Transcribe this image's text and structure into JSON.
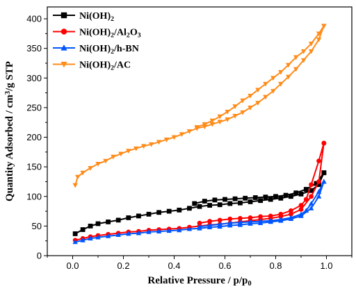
{
  "chart_data": {
    "type": "line",
    "xlabel_parts": [
      "Relative Pressure / p/p",
      "0"
    ],
    "ylabel_parts": [
      "Quantity Adsorbed / cm",
      "3",
      "/g STP"
    ],
    "xlim": [
      -0.1,
      1.1
    ],
    "ylim": [
      0,
      420
    ],
    "xticks": [
      "0.0",
      "0.2",
      "0.4",
      "0.6",
      "0.8",
      "1.0"
    ],
    "xtick_values": [
      0.0,
      0.2,
      0.4,
      0.6,
      0.8,
      1.0
    ],
    "yticks": [
      "0",
      "50",
      "100",
      "150",
      "200",
      "250",
      "300",
      "350",
      "400"
    ],
    "ytick_values": [
      0,
      50,
      100,
      150,
      200,
      250,
      300,
      350,
      400
    ],
    "grid": false,
    "legend_position": "top-left",
    "series": [
      {
        "name_parts": [
          "Ni(OH)",
          "2",
          ""
        ],
        "color": "#000000",
        "marker": "square",
        "adsorption": [
          [
            0.01,
            37
          ],
          [
            0.04,
            44
          ],
          [
            0.07,
            50
          ],
          [
            0.1,
            54
          ],
          [
            0.14,
            57
          ],
          [
            0.18,
            60
          ],
          [
            0.22,
            64
          ],
          [
            0.26,
            67
          ],
          [
            0.3,
            70
          ],
          [
            0.34,
            73
          ],
          [
            0.38,
            75
          ],
          [
            0.42,
            77
          ],
          [
            0.46,
            80
          ],
          [
            0.5,
            83
          ],
          [
            0.54,
            85
          ],
          [
            0.58,
            86
          ],
          [
            0.62,
            88
          ],
          [
            0.66,
            89
          ],
          [
            0.7,
            91
          ],
          [
            0.74,
            93
          ],
          [
            0.78,
            95
          ],
          [
            0.82,
            97
          ],
          [
            0.86,
            100
          ],
          [
            0.9,
            104
          ],
          [
            0.94,
            110
          ],
          [
            0.97,
            120
          ],
          [
            0.99,
            140
          ]
        ],
        "desorption": [
          [
            0.99,
            140
          ],
          [
            0.96,
            122
          ],
          [
            0.92,
            112
          ],
          [
            0.88,
            106
          ],
          [
            0.84,
            102
          ],
          [
            0.8,
            100
          ],
          [
            0.76,
            99
          ],
          [
            0.72,
            98
          ],
          [
            0.68,
            97
          ],
          [
            0.64,
            96
          ],
          [
            0.6,
            95
          ],
          [
            0.56,
            94
          ],
          [
            0.52,
            92
          ],
          [
            0.48,
            88
          ]
        ]
      },
      {
        "name_parts": [
          "Ni(OH)",
          "2",
          "/Al",
          "2",
          "O",
          "3",
          ""
        ],
        "color": "#ff0000",
        "marker": "circle",
        "adsorption": [
          [
            0.01,
            26
          ],
          [
            0.04,
            29
          ],
          [
            0.07,
            32
          ],
          [
            0.1,
            34
          ],
          [
            0.14,
            36
          ],
          [
            0.18,
            38
          ],
          [
            0.22,
            40
          ],
          [
            0.26,
            41
          ],
          [
            0.3,
            43
          ],
          [
            0.34,
            44
          ],
          [
            0.38,
            45
          ],
          [
            0.42,
            46
          ],
          [
            0.46,
            48
          ],
          [
            0.5,
            50
          ],
          [
            0.54,
            52
          ],
          [
            0.58,
            53
          ],
          [
            0.62,
            55
          ],
          [
            0.66,
            57
          ],
          [
            0.7,
            59
          ],
          [
            0.74,
            61
          ],
          [
            0.78,
            63
          ],
          [
            0.82,
            66
          ],
          [
            0.86,
            70
          ],
          [
            0.9,
            78
          ],
          [
            0.94,
            100
          ],
          [
            0.97,
            125
          ],
          [
            0.99,
            190
          ]
        ],
        "desorption": [
          [
            0.99,
            190
          ],
          [
            0.97,
            160
          ],
          [
            0.94,
            120
          ],
          [
            0.92,
            95
          ],
          [
            0.9,
            85
          ],
          [
            0.86,
            76
          ],
          [
            0.82,
            70
          ],
          [
            0.78,
            67
          ],
          [
            0.74,
            66
          ],
          [
            0.7,
            64
          ],
          [
            0.66,
            63
          ],
          [
            0.62,
            62
          ],
          [
            0.58,
            60
          ],
          [
            0.54,
            58
          ],
          [
            0.5,
            55
          ]
        ]
      },
      {
        "name_parts": [
          "Ni(OH)",
          "2",
          "/h-BN"
        ],
        "color": "#0055ff",
        "marker": "triangle-up",
        "adsorption": [
          [
            0.01,
            23
          ],
          [
            0.04,
            26
          ],
          [
            0.07,
            29
          ],
          [
            0.1,
            31
          ],
          [
            0.14,
            33
          ],
          [
            0.18,
            35
          ],
          [
            0.22,
            37
          ],
          [
            0.26,
            38
          ],
          [
            0.3,
            40
          ],
          [
            0.34,
            41
          ],
          [
            0.38,
            42
          ],
          [
            0.42,
            43
          ],
          [
            0.46,
            45
          ],
          [
            0.5,
            46
          ],
          [
            0.54,
            48
          ],
          [
            0.58,
            49
          ],
          [
            0.62,
            51
          ],
          [
            0.66,
            52
          ],
          [
            0.7,
            54
          ],
          [
            0.74,
            55
          ],
          [
            0.78,
            57
          ],
          [
            0.82,
            59
          ],
          [
            0.86,
            62
          ],
          [
            0.9,
            67
          ],
          [
            0.94,
            80
          ],
          [
            0.97,
            100
          ],
          [
            0.99,
            125
          ]
        ],
        "desorption": [
          [
            0.99,
            125
          ],
          [
            0.97,
            108
          ],
          [
            0.94,
            88
          ],
          [
            0.92,
            76
          ],
          [
            0.9,
            70
          ],
          [
            0.86,
            64
          ],
          [
            0.82,
            61
          ],
          [
            0.78,
            59
          ],
          [
            0.74,
            58
          ],
          [
            0.7,
            57
          ],
          [
            0.66,
            56
          ],
          [
            0.62,
            55
          ],
          [
            0.58,
            53
          ],
          [
            0.54,
            51
          ],
          [
            0.5,
            49
          ]
        ]
      },
      {
        "name_parts": [
          "Ni(OH)",
          "2",
          "/AC"
        ],
        "color": "#ff8c1a",
        "marker": "triangle-down",
        "adsorption": [
          [
            0.01,
            119
          ],
          [
            0.02,
            133
          ],
          [
            0.04,
            140
          ],
          [
            0.07,
            148
          ],
          [
            0.1,
            155
          ],
          [
            0.13,
            160
          ],
          [
            0.16,
            167
          ],
          [
            0.19,
            172
          ],
          [
            0.22,
            177
          ],
          [
            0.25,
            181
          ],
          [
            0.28,
            185
          ],
          [
            0.31,
            188
          ],
          [
            0.34,
            192
          ],
          [
            0.37,
            196
          ],
          [
            0.4,
            200
          ],
          [
            0.43,
            205
          ],
          [
            0.46,
            210
          ],
          [
            0.49,
            215
          ],
          [
            0.52,
            218
          ],
          [
            0.55,
            222
          ],
          [
            0.58,
            226
          ],
          [
            0.61,
            230
          ],
          [
            0.64,
            236
          ],
          [
            0.67,
            242
          ],
          [
            0.7,
            250
          ],
          [
            0.73,
            258
          ],
          [
            0.76,
            268
          ],
          [
            0.79,
            278
          ],
          [
            0.82,
            290
          ],
          [
            0.85,
            302
          ],
          [
            0.88,
            315
          ],
          [
            0.91,
            330
          ],
          [
            0.94,
            345
          ],
          [
            0.97,
            365
          ],
          [
            0.99,
            388
          ]
        ],
        "desorption": [
          [
            0.99,
            388
          ],
          [
            0.97,
            375
          ],
          [
            0.94,
            358
          ],
          [
            0.91,
            345
          ],
          [
            0.88,
            335
          ],
          [
            0.85,
            322
          ],
          [
            0.82,
            310
          ],
          [
            0.79,
            300
          ],
          [
            0.76,
            290
          ],
          [
            0.73,
            280
          ],
          [
            0.7,
            270
          ],
          [
            0.67,
            262
          ],
          [
            0.64,
            252
          ],
          [
            0.61,
            243
          ],
          [
            0.58,
            235
          ],
          [
            0.55,
            228
          ],
          [
            0.52,
            222
          ],
          [
            0.49,
            217
          ]
        ]
      }
    ]
  }
}
